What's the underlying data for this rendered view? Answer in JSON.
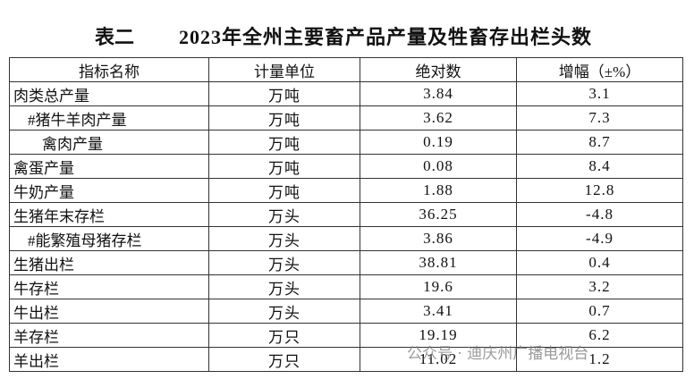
{
  "header": {
    "label": "表二",
    "title": "2023年全州主要畜产品产量及牲畜存出栏头数"
  },
  "table": {
    "columns": [
      "指标名称",
      "计量单位",
      "绝对数",
      "增幅（±%）"
    ],
    "rows": [
      [
        "肉类总产量",
        "万吨",
        "3.84",
        "3.1"
      ],
      [
        "#猪牛羊肉产量",
        "万吨",
        "3.62",
        "7.3"
      ],
      [
        "禽肉产量",
        "万吨",
        "0.19",
        "8.7"
      ],
      [
        "禽蛋产量",
        "万吨",
        "0.08",
        "8.4"
      ],
      [
        "牛奶产量",
        "万吨",
        "1.88",
        "12.8"
      ],
      [
        "生猪年末存栏",
        "万头",
        "36.25",
        "-4.8"
      ],
      [
        "#能繁殖母猪存栏",
        "万头",
        "3.86",
        "-4.9"
      ],
      [
        "生猪出栏",
        "万头",
        "38.81",
        "0.4"
      ],
      [
        "牛存栏",
        "万头",
        "19.6",
        "3.2"
      ],
      [
        "牛出栏",
        "万头",
        "3.41",
        "0.7"
      ],
      [
        "羊存栏",
        "万只",
        "19.19",
        "6.2"
      ],
      [
        "羊出栏",
        "万只",
        "11.02",
        "1.2"
      ]
    ]
  },
  "watermark": "公众号 · 迪庆州广播电视台"
}
